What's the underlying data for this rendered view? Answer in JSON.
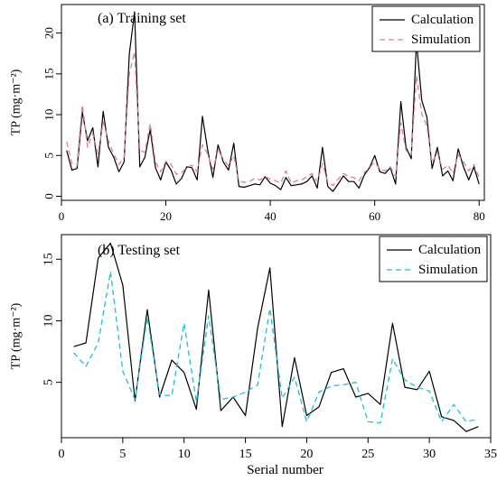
{
  "chart_data": [
    {
      "type": "line",
      "title": "(a) Training set",
      "ylabel": "TP (mg·m⁻²)",
      "xlabel": "",
      "xlim": [
        0,
        81
      ],
      "ylim": [
        -0.5,
        23.5
      ],
      "xticks": [
        0,
        20,
        40,
        60,
        80
      ],
      "yticks": [
        0,
        5,
        10,
        15,
        20
      ],
      "legend_position": "top-right",
      "grid": false,
      "x": [
        1,
        2,
        3,
        4,
        5,
        6,
        7,
        8,
        9,
        10,
        11,
        12,
        13,
        14,
        15,
        16,
        17,
        18,
        19,
        20,
        21,
        22,
        23,
        24,
        25,
        26,
        27,
        28,
        29,
        30,
        31,
        32,
        33,
        34,
        35,
        36,
        37,
        38,
        39,
        40,
        41,
        42,
        43,
        44,
        45,
        46,
        47,
        48,
        49,
        50,
        51,
        52,
        53,
        54,
        55,
        56,
        57,
        58,
        59,
        60,
        61,
        62,
        63,
        64,
        65,
        66,
        67,
        68,
        69,
        70,
        71,
        72,
        73,
        74,
        75,
        76,
        77,
        78,
        79,
        80
      ],
      "series": [
        {
          "name": "Calculation",
          "color": "#000000",
          "dash": "solid",
          "values": [
            5.6,
            3.2,
            3.4,
            10.3,
            6.8,
            8.4,
            3.6,
            10.4,
            6.0,
            4.8,
            3.0,
            4.2,
            17.4,
            22.6,
            3.6,
            4.8,
            8.2,
            3.5,
            2.0,
            4.2,
            3.2,
            1.5,
            2.2,
            3.6,
            3.5,
            2.0,
            9.8,
            5.7,
            2.3,
            6.3,
            4.2,
            3.2,
            6.5,
            1.2,
            1.1,
            1.3,
            1.5,
            1.4,
            2.4,
            1.6,
            1.3,
            0.8,
            2.3,
            1.3,
            1.4,
            1.5,
            1.8,
            2.5,
            1.0,
            6.0,
            1.2,
            0.6,
            1.5,
            2.5,
            1.8,
            1.8,
            1.0,
            2.6,
            3.5,
            5.0,
            3.0,
            2.8,
            3.5,
            1.5,
            11.6,
            6.0,
            4.6,
            19.0,
            11.8,
            9.7,
            3.4,
            6.0,
            2.5,
            3.1,
            1.9,
            5.8,
            3.6,
            2.0,
            3.6,
            1.5
          ]
        },
        {
          "name": "Simulation",
          "color": "#e07ba0",
          "dash": "dashed",
          "values": [
            6.7,
            4.0,
            3.8,
            11.2,
            6.0,
            7.7,
            5.2,
            9.1,
            6.8,
            5.2,
            3.9,
            4.8,
            15.0,
            17.7,
            5.6,
            5.4,
            8.9,
            4.2,
            3.0,
            4.3,
            3.9,
            2.7,
            2.9,
            3.5,
            3.8,
            3.0,
            6.3,
            5.2,
            3.3,
            5.6,
            4.6,
            3.7,
            5.0,
            1.9,
            1.7,
            1.8,
            2.2,
            2.0,
            2.4,
            2.1,
            1.9,
            1.6,
            3.1,
            1.6,
            1.9,
            2.0,
            2.4,
            2.8,
            1.8,
            4.0,
            1.8,
            1.3,
            2.1,
            2.8,
            2.4,
            2.3,
            1.9,
            2.9,
            3.5,
            4.2,
            3.3,
            3.1,
            3.6,
            2.4,
            9.0,
            5.6,
            5.1,
            14.8,
            10.1,
            8.6,
            4.1,
            5.4,
            3.3,
            3.8,
            2.8,
            5.1,
            4.2,
            3.1,
            3.9,
            2.3
          ]
        }
      ]
    },
    {
      "type": "line",
      "title": "(b) Testing set",
      "ylabel": "TP (mg·m⁻²)",
      "xlabel": "Serial number",
      "xlim": [
        0,
        35
      ],
      "ylim": [
        0.5,
        17
      ],
      "xticks": [
        0,
        5,
        10,
        15,
        20,
        25,
        30,
        35
      ],
      "yticks": [
        5,
        10,
        15
      ],
      "legend_position": "top-right",
      "grid": false,
      "x": [
        1,
        2,
        3,
        4,
        5,
        6,
        7,
        8,
        9,
        10,
        11,
        12,
        13,
        14,
        15,
        16,
        17,
        18,
        19,
        20,
        21,
        22,
        23,
        24,
        25,
        26,
        27,
        28,
        29,
        30,
        31,
        32,
        33,
        34
      ],
      "series": [
        {
          "name": "Calculation",
          "color": "#000000",
          "dash": "solid",
          "values": [
            7.9,
            8.2,
            15.1,
            16.3,
            12.9,
            3.5,
            10.9,
            3.8,
            6.8,
            5.8,
            2.8,
            12.5,
            2.7,
            3.8,
            2.3,
            9.4,
            14.3,
            1.4,
            7.0,
            2.3,
            3.0,
            5.8,
            6.1,
            3.8,
            4.1,
            3.2,
            9.8,
            4.6,
            4.4,
            5.9,
            2.2,
            1.9,
            1.0,
            1.4
          ]
        },
        {
          "name": "Simulation",
          "color": "#1fbfd6",
          "dash": "dashed",
          "values": [
            7.4,
            6.3,
            8.2,
            14.0,
            5.9,
            3.6,
            10.3,
            4.0,
            3.9,
            9.8,
            3.4,
            10.4,
            3.6,
            3.8,
            4.2,
            4.8,
            11.0,
            3.7,
            5.4,
            1.8,
            4.2,
            4.7,
            4.8,
            5.0,
            1.8,
            1.7,
            6.9,
            5.2,
            4.6,
            4.3,
            1.8,
            3.2,
            1.8,
            2.0
          ]
        }
      ]
    }
  ]
}
